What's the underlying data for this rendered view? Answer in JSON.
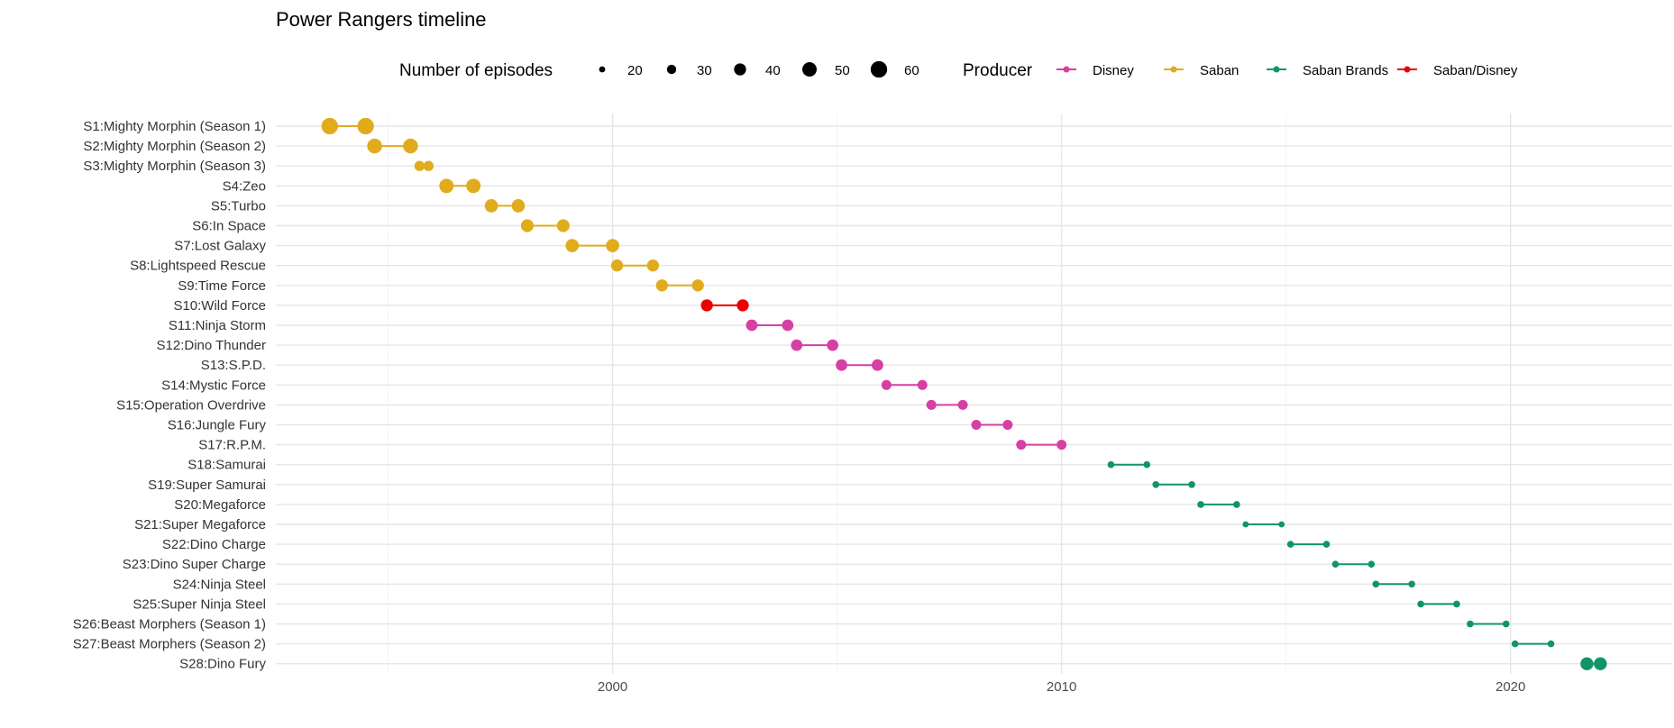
{
  "chart_data": {
    "type": "scatter",
    "title": "Power Rangers timeline",
    "xlabel": "",
    "ylabel": "",
    "xlim": [
      1992.5,
      2023.6
    ],
    "x_ticks": [
      2000,
      2010,
      2020
    ],
    "grid": true,
    "legend_position": "top",
    "size_legend": {
      "title": "Number of episodes",
      "values": [
        20,
        30,
        40,
        50,
        60
      ]
    },
    "producer_legend": {
      "title": "Producer",
      "entries": [
        {
          "name": "Disney",
          "color": "#D63FA3"
        },
        {
          "name": "Saban",
          "color": "#E0AC1C"
        },
        {
          "name": "Saban Brands",
          "color": "#119469"
        },
        {
          "name": "Saban/Disney",
          "color": "#EE0000"
        }
      ]
    },
    "seasons": [
      {
        "label": "S1:Mighty Morphin (Season 1)",
        "start": 1993.7,
        "end": 1994.5,
        "episodes": 60,
        "producer": "Saban"
      },
      {
        "label": "S2:Mighty Morphin (Season 2)",
        "start": 1994.7,
        "end": 1995.5,
        "episodes": 52,
        "producer": "Saban"
      },
      {
        "label": "S3:Mighty Morphin (Season 3)",
        "start": 1995.7,
        "end": 1995.9,
        "episodes": 33,
        "producer": "Saban"
      },
      {
        "label": "S4:Zeo",
        "start": 1996.3,
        "end": 1996.9,
        "episodes": 50,
        "producer": "Saban"
      },
      {
        "label": "S5:Turbo",
        "start": 1997.3,
        "end": 1997.9,
        "episodes": 45,
        "producer": "Saban"
      },
      {
        "label": "S6:In Space",
        "start": 1998.1,
        "end": 1998.9,
        "episodes": 43,
        "producer": "Saban"
      },
      {
        "label": "S7:Lost Galaxy",
        "start": 1999.1,
        "end": 2000.0,
        "episodes": 45,
        "producer": "Saban"
      },
      {
        "label": "S8:Lightspeed Rescue",
        "start": 2000.1,
        "end": 2000.9,
        "episodes": 40,
        "producer": "Saban"
      },
      {
        "label": "S9:Time Force",
        "start": 2001.1,
        "end": 2001.9,
        "episodes": 40,
        "producer": "Saban"
      },
      {
        "label": "S10:Wild Force",
        "start": 2002.1,
        "end": 2002.9,
        "episodes": 40,
        "producer": "Saban/Disney"
      },
      {
        "label": "S11:Ninja Storm",
        "start": 2003.1,
        "end": 2003.9,
        "episodes": 38,
        "producer": "Disney"
      },
      {
        "label": "S12:Dino Thunder",
        "start": 2004.1,
        "end": 2004.9,
        "episodes": 38,
        "producer": "Disney"
      },
      {
        "label": "S13:S.P.D.",
        "start": 2005.1,
        "end": 2005.9,
        "episodes": 38,
        "producer": "Disney"
      },
      {
        "label": "S14:Mystic Force",
        "start": 2006.1,
        "end": 2006.9,
        "episodes": 32,
        "producer": "Disney"
      },
      {
        "label": "S15:Operation Overdrive",
        "start": 2007.1,
        "end": 2007.8,
        "episodes": 32,
        "producer": "Disney"
      },
      {
        "label": "S16:Jungle Fury",
        "start": 2008.1,
        "end": 2008.8,
        "episodes": 32,
        "producer": "Disney"
      },
      {
        "label": "S17:R.P.M.",
        "start": 2009.1,
        "end": 2010.0,
        "episodes": 32,
        "producer": "Disney"
      },
      {
        "label": "S18:Samurai",
        "start": 2011.1,
        "end": 2011.9,
        "episodes": 22,
        "producer": "Saban Brands"
      },
      {
        "label": "S19:Super Samurai",
        "start": 2012.1,
        "end": 2012.9,
        "episodes": 22,
        "producer": "Saban Brands"
      },
      {
        "label": "S20:Megaforce",
        "start": 2013.1,
        "end": 2013.9,
        "episodes": 22,
        "producer": "Saban Brands"
      },
      {
        "label": "S21:Super Megaforce",
        "start": 2014.1,
        "end": 2014.9,
        "episodes": 20,
        "producer": "Saban Brands"
      },
      {
        "label": "S22:Dino Charge",
        "start": 2015.1,
        "end": 2015.9,
        "episodes": 22,
        "producer": "Saban Brands"
      },
      {
        "label": "S23:Dino Super Charge",
        "start": 2016.1,
        "end": 2016.9,
        "episodes": 22,
        "producer": "Saban Brands"
      },
      {
        "label": "S24:Ninja Steel",
        "start": 2017.0,
        "end": 2017.8,
        "episodes": 22,
        "producer": "Saban Brands"
      },
      {
        "label": "S25:Super Ninja Steel",
        "start": 2018.0,
        "end": 2018.8,
        "episodes": 22,
        "producer": "Saban Brands"
      },
      {
        "label": "S26:Beast Morphers (Season 1)",
        "start": 2019.1,
        "end": 2019.9,
        "episodes": 22,
        "producer": "Saban Brands"
      },
      {
        "label": "S27:Beast Morphers (Season 2)",
        "start": 2020.1,
        "end": 2020.9,
        "episodes": 22,
        "producer": "Saban Brands"
      },
      {
        "label": "S28:Dino Fury",
        "start": 2021.7,
        "end": 2022.0,
        "episodes": 44,
        "producer": "Saban Brands"
      }
    ]
  }
}
